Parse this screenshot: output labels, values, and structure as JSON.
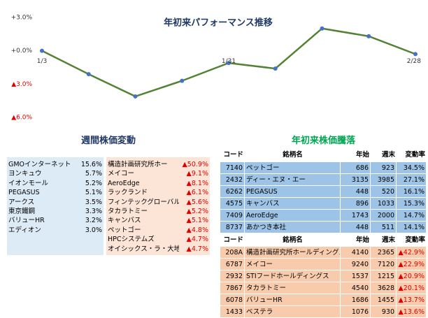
{
  "chart_data": {
    "type": "line",
    "title": "年初来パフォーマンス推移",
    "categories": [
      "1/3",
      null,
      null,
      null,
      "1/31",
      null,
      null,
      null,
      "2/28"
    ],
    "values": [
      0.0,
      -2.1,
      -4.1,
      -2.7,
      -1.1,
      -1.6,
      2.0,
      1.3,
      -0.3
    ],
    "color": "#548235",
    "marker_color": "#4472c4",
    "ylim": [
      -6.3,
      3.3
    ],
    "yticks": [
      {
        "value": 3,
        "label": "+3.0%"
      },
      {
        "value": 0,
        "label": "+0.0%"
      },
      {
        "value": -3,
        "label": "▲3.0%"
      },
      {
        "value": -6,
        "label": "▲6.0%"
      }
    ]
  },
  "weekly": {
    "title": "週間株価変動",
    "gainers": [
      [
        "GMOインターネット",
        "15.6%"
      ],
      [
        "ヨンキュウ",
        "5.7%"
      ],
      [
        "イオンモール",
        "5.2%"
      ],
      [
        "PEGASUS",
        "5.1%"
      ],
      [
        "アークス",
        "3.5%"
      ],
      [
        "東京鐵鋼",
        "3.3%"
      ],
      [
        "バリューHR",
        "3.2%"
      ],
      [
        "エディオン",
        "3.0%"
      ]
    ],
    "losers": [
      [
        "構造計画研究所ホー",
        "▲50.9%"
      ],
      [
        "メイコー",
        "▲9.1%"
      ],
      [
        "AeroEdge",
        "▲8.1%"
      ],
      [
        "ラックランド",
        "▲6.1%"
      ],
      [
        "フィンテックグローバル",
        "▲5.6%"
      ],
      [
        "タカラトミー",
        "▲5.2%"
      ],
      [
        "キャンバス",
        "▲5.1%"
      ],
      [
        "ペットゴー",
        "▲4.8%"
      ],
      [
        "HPCシステムズ",
        "▲4.7%"
      ],
      [
        "オイシックス・ラ・大地",
        "▲4.7%"
      ]
    ]
  },
  "ytd": {
    "title": "年初来株価騰落",
    "header": [
      "コード",
      "銘柄名",
      "年始",
      "週末",
      "変動率"
    ],
    "gainers": [
      [
        "7140",
        "ペットゴー",
        "686",
        "923",
        "34.5%"
      ],
      [
        "2432",
        "ディー・エヌ・エー",
        "3135",
        "3985",
        "27.1%"
      ],
      [
        "6262",
        "PEGASUS",
        "448",
        "520",
        "16.1%"
      ],
      [
        "4575",
        "キャンバス",
        "896",
        "1033",
        "15.3%"
      ],
      [
        "7409",
        "AeroEdge",
        "1743",
        "2000",
        "14.7%"
      ],
      [
        "8737",
        "あかつき本社",
        "448",
        "511",
        "14.1%"
      ]
    ],
    "losers": [
      [
        "208A",
        "構造計画研究所ホールディングス",
        "4140",
        "2365",
        "▲42.9%"
      ],
      [
        "6787",
        "メイコー",
        "9240",
        "7120",
        "▲22.9%"
      ],
      [
        "2932",
        "STIフードホールディングス",
        "1537",
        "1215",
        "▲20.9%"
      ],
      [
        "7867",
        "タカラトミー",
        "4540",
        "3628",
        "▲20.1%"
      ],
      [
        "6078",
        "バリューHR",
        "1686",
        "1455",
        "▲13.7%"
      ],
      [
        "1433",
        "ベステラ",
        "1076",
        "930",
        "▲13.6%"
      ]
    ]
  }
}
